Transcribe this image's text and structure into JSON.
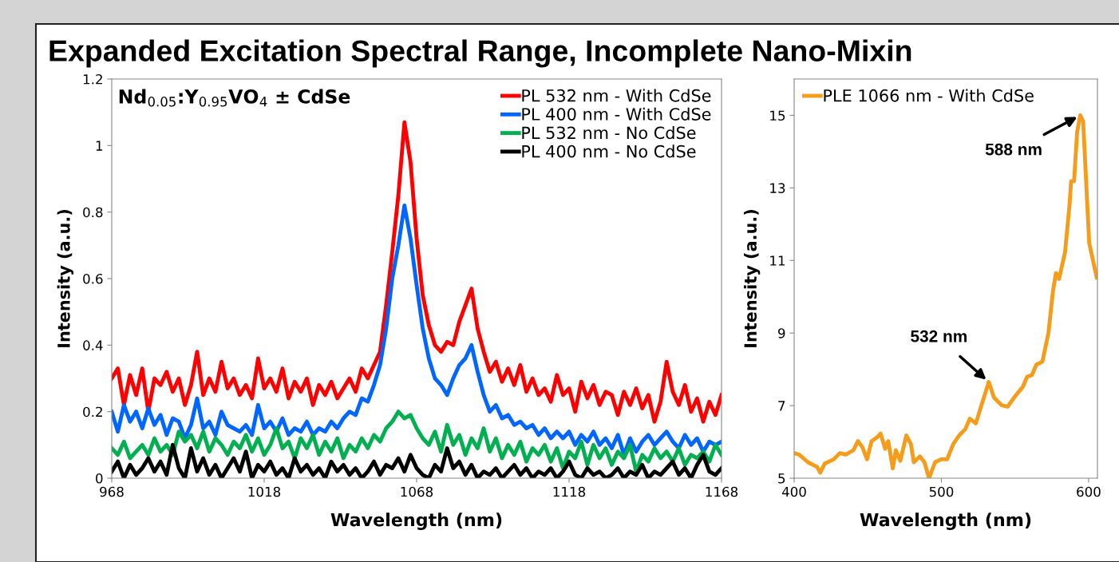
{
  "chart_data": [
    {
      "type": "line",
      "title": "Expanded Excitation Spectral Range, Incomplete Nano-Mixin",
      "subtitle": "Nd$_{0.05}$:Y$_{0.95}$VO$_{4}$ ± CdSe",
      "xlabel": "Wavelength (nm)",
      "ylabel": "Intensity (a.u.)",
      "x": [
        968,
        970,
        972,
        974,
        976,
        978,
        980,
        982,
        984,
        986,
        988,
        990,
        992,
        994,
        996,
        998,
        1000,
        1002,
        1004,
        1006,
        1008,
        1010,
        1012,
        1014,
        1016,
        1018,
        1020,
        1022,
        1024,
        1026,
        1028,
        1030,
        1032,
        1034,
        1036,
        1038,
        1040,
        1042,
        1044,
        1046,
        1048,
        1050,
        1052,
        1054,
        1056,
        1058,
        1060,
        1062,
        1064,
        1066,
        1068,
        1070,
        1072,
        1074,
        1076,
        1078,
        1080,
        1082,
        1084,
        1086,
        1088,
        1090,
        1092,
        1094,
        1096,
        1098,
        1100,
        1102,
        1104,
        1106,
        1108,
        1110,
        1112,
        1114,
        1116,
        1118,
        1120,
        1122,
        1124,
        1126,
        1128,
        1130,
        1132,
        1134,
        1136,
        1138,
        1140,
        1142,
        1144,
        1146,
        1148,
        1150,
        1152,
        1154,
        1156,
        1158,
        1160,
        1162,
        1164,
        1166,
        1168
      ],
      "series": [
        {
          "name": "PL 532 nm - With CdSe",
          "color": "#ff0000",
          "values": [
            0.3,
            0.33,
            0.22,
            0.31,
            0.25,
            0.33,
            0.2,
            0.3,
            0.28,
            0.32,
            0.26,
            0.3,
            0.22,
            0.28,
            0.38,
            0.25,
            0.3,
            0.26,
            0.35,
            0.27,
            0.3,
            0.25,
            0.28,
            0.24,
            0.36,
            0.27,
            0.3,
            0.26,
            0.33,
            0.24,
            0.29,
            0.26,
            0.3,
            0.22,
            0.28,
            0.25,
            0.29,
            0.24,
            0.27,
            0.3,
            0.26,
            0.33,
            0.3,
            0.34,
            0.38,
            0.52,
            0.68,
            0.85,
            1.07,
            0.95,
            0.72,
            0.55,
            0.46,
            0.4,
            0.38,
            0.41,
            0.4,
            0.47,
            0.52,
            0.57,
            0.45,
            0.38,
            0.32,
            0.35,
            0.29,
            0.33,
            0.28,
            0.34,
            0.26,
            0.3,
            0.25,
            0.27,
            0.23,
            0.31,
            0.25,
            0.27,
            0.2,
            0.29,
            0.24,
            0.28,
            0.22,
            0.26,
            0.25,
            0.19,
            0.26,
            0.22,
            0.27,
            0.21,
            0.25,
            0.17,
            0.23,
            0.35,
            0.26,
            0.22,
            0.28,
            0.2,
            0.24,
            0.17,
            0.23,
            0.19,
            0.25
          ]
        },
        {
          "name": "PL 400 nm - With CdSe",
          "color": "#0066ff",
          "values": [
            0.2,
            0.14,
            0.22,
            0.17,
            0.2,
            0.15,
            0.21,
            0.16,
            0.19,
            0.13,
            0.18,
            0.17,
            0.12,
            0.16,
            0.24,
            0.15,
            0.17,
            0.13,
            0.2,
            0.16,
            0.15,
            0.14,
            0.16,
            0.13,
            0.22,
            0.15,
            0.17,
            0.14,
            0.18,
            0.13,
            0.15,
            0.14,
            0.17,
            0.13,
            0.15,
            0.14,
            0.17,
            0.15,
            0.18,
            0.2,
            0.19,
            0.24,
            0.23,
            0.28,
            0.34,
            0.45,
            0.6,
            0.7,
            0.82,
            0.72,
            0.58,
            0.45,
            0.36,
            0.3,
            0.28,
            0.25,
            0.3,
            0.34,
            0.36,
            0.4,
            0.32,
            0.25,
            0.2,
            0.22,
            0.18,
            0.19,
            0.16,
            0.17,
            0.15,
            0.16,
            0.13,
            0.15,
            0.12,
            0.14,
            0.12,
            0.14,
            0.1,
            0.13,
            0.11,
            0.14,
            0.1,
            0.12,
            0.09,
            0.13,
            0.07,
            0.12,
            0.08,
            0.11,
            0.13,
            0.1,
            0.12,
            0.14,
            0.11,
            0.09,
            0.13,
            0.1,
            0.12,
            0.08,
            0.11,
            0.1,
            0.11
          ]
        },
        {
          "name": "PL 532 nm - No CdSe",
          "color": "#00b050",
          "values": [
            0.09,
            0.07,
            0.11,
            0.06,
            0.08,
            0.1,
            0.07,
            0.12,
            0.08,
            0.1,
            0.07,
            0.14,
            0.11,
            0.13,
            0.09,
            0.14,
            0.08,
            0.12,
            0.1,
            0.07,
            0.11,
            0.09,
            0.13,
            0.08,
            0.12,
            0.07,
            0.1,
            0.15,
            0.09,
            0.11,
            0.06,
            0.12,
            0.09,
            0.13,
            0.07,
            0.11,
            0.08,
            0.12,
            0.06,
            0.1,
            0.08,
            0.12,
            0.09,
            0.13,
            0.11,
            0.15,
            0.17,
            0.2,
            0.18,
            0.19,
            0.15,
            0.12,
            0.1,
            0.14,
            0.08,
            0.16,
            0.1,
            0.13,
            0.07,
            0.12,
            0.09,
            0.15,
            0.08,
            0.12,
            0.06,
            0.1,
            0.07,
            0.11,
            0.05,
            0.09,
            0.07,
            0.1,
            0.05,
            0.09,
            0.03,
            0.08,
            0.06,
            0.11,
            0.04,
            0.1,
            0.06,
            0.09,
            0.04,
            0.08,
            0.06,
            0.1,
            0.02,
            0.07,
            0.05,
            0.09,
            0.06,
            0.08,
            0.05,
            0.09,
            0.04,
            0.07,
            0.06,
            0.08,
            0.05,
            0.1,
            0.07
          ]
        },
        {
          "name": "PL 400 nm - No CdSe",
          "color": "#000000",
          "values": [
            0.02,
            0.05,
            0.0,
            0.04,
            0.01,
            0.03,
            0.06,
            0.02,
            0.05,
            0.01,
            0.1,
            0.03,
            0.0,
            0.09,
            0.02,
            0.06,
            0.01,
            0.04,
            0.0,
            0.03,
            0.06,
            0.02,
            0.08,
            0.0,
            0.04,
            0.02,
            0.05,
            0.01,
            0.03,
            0.0,
            0.06,
            0.02,
            0.04,
            0.01,
            0.03,
            0.0,
            0.05,
            0.02,
            0.04,
            0.01,
            0.03,
            0.0,
            0.02,
            0.05,
            0.01,
            0.04,
            0.03,
            0.06,
            0.02,
            0.07,
            0.03,
            0.01,
            0.0,
            0.04,
            0.02,
            0.09,
            0.03,
            0.05,
            0.01,
            0.04,
            0.0,
            0.02,
            0.01,
            0.03,
            0.0,
            0.02,
            0.04,
            0.01,
            0.03,
            0.0,
            0.02,
            0.01,
            0.03,
            0.0,
            0.02,
            0.05,
            0.01,
            0.0,
            0.03,
            0.01,
            0.02,
            0.0,
            0.01,
            0.03,
            0.0,
            0.02,
            0.01,
            0.04,
            0.0,
            0.02,
            0.01,
            0.03,
            0.05,
            0.01,
            0.03,
            0.0,
            0.04,
            0.07,
            0.02,
            0.01,
            0.03
          ]
        }
      ],
      "xlim": [
        968,
        1168
      ],
      "xticks": [
        968,
        1018,
        1068,
        1118,
        1168
      ],
      "ylim": [
        0,
        1.2
      ],
      "yticks": [
        0,
        0.2,
        0.4,
        0.6,
        0.8,
        {
          "value": 1,
          "label": "1"
        },
        1.2
      ],
      "grid": false,
      "legend": "top right",
      "marker": "none",
      "line_style": "solid"
    },
    {
      "type": "line",
      "xlabel": "Wavelength (nm)",
      "ylabel": "Intensity (a.u.)",
      "series": [
        {
          "name": "PLE 1066 nm - With CdSe",
          "color": "#f59c1a",
          "x": [
            400,
            403.3,
            409.4,
            415.6,
            417.7,
            420.7,
            426.9,
            431,
            435.1,
            440.2,
            443.3,
            446.4,
            449.5,
            452.6,
            456.7,
            458.7,
            461.8,
            463.9,
            467,
            469,
            472.1,
            476.2,
            479.3,
            481.3,
            485.4,
            488.5,
            491.6,
            495.7,
            499.8,
            503.9,
            508,
            512.1,
            516.2,
            519.3,
            523.4,
            528.5,
            532.2,
            535.7,
            540.9,
            545,
            550.1,
            555.2,
            558.3,
            561.4,
            564.5,
            568.6,
            572.7,
            575.8,
            577.8,
            579.9,
            584,
            587.1,
            588.1,
            590.1,
            592.2,
            594.3,
            596.3,
            600.4,
            605.5
          ],
          "values": [
            5.69,
            5.65,
            5.44,
            5.31,
            5.15,
            5.4,
            5.52,
            5.69,
            5.65,
            5.77,
            6.02,
            5.85,
            5.52,
            6.02,
            6.14,
            6.23,
            5.81,
            6.02,
            5.27,
            5.77,
            5.48,
            6.18,
            5.94,
            5.44,
            5.6,
            5.44,
            5.0,
            5.44,
            5.52,
            5.52,
            5.94,
            6.18,
            6.35,
            6.64,
            6.51,
            7.18,
            7.65,
            7.22,
            7.01,
            6.97,
            7.26,
            7.51,
            7.8,
            7.84,
            8.13,
            8.21,
            9.0,
            10.16,
            10.65,
            10.49,
            11.23,
            12.56,
            13.18,
            13.18,
            14.54,
            15.0,
            14.83,
            11.48,
            10.53
          ]
        }
      ],
      "annotations": [
        {
          "text": "588 nm",
          "x": 594.3,
          "y": 15.0
        },
        {
          "text": "532 nm",
          "x": 532.2,
          "y": 7.65
        }
      ],
      "xlim": [
        400,
        606
      ],
      "xticks": [
        400,
        500,
        600
      ],
      "ylim": [
        5,
        16
      ],
      "yticks": [
        5,
        7,
        9,
        11,
        13,
        15
      ],
      "grid": false,
      "legend": "top left",
      "marker": "none",
      "line_style": "solid"
    }
  ]
}
